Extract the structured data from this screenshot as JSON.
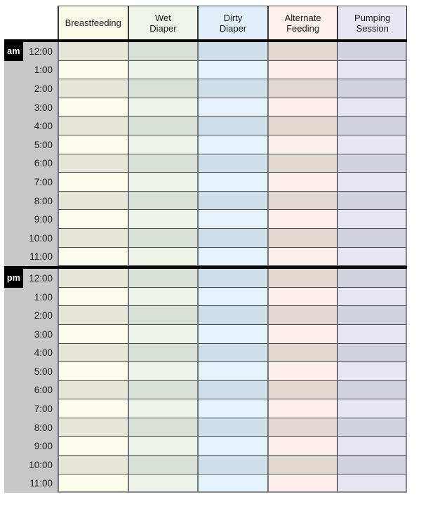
{
  "table": {
    "columns": [
      {
        "label": "Breastfeeding",
        "header_bg": "#fbfbe9",
        "row_light": "#fdfdee",
        "row_dark": "#e5e5d8"
      },
      {
        "label": "Wet\nDiaper",
        "header_bg": "#eff4ea",
        "row_light": "#eef3ea",
        "row_dark": "#d8dfd4"
      },
      {
        "label": "Dirty\nDiaper",
        "header_bg": "#e0effa",
        "row_light": "#e4f2fc",
        "row_dark": "#cfdfe9"
      },
      {
        "label": "Alternate\nFeeding",
        "header_bg": "#fdefeb",
        "row_light": "#fcefeb",
        "row_dark": "#e1d8d2"
      },
      {
        "label": "Pumping\nSession",
        "header_bg": "#e7e6f2",
        "row_light": "#e8e6f2",
        "row_dark": "#d2d2df"
      }
    ],
    "sections": [
      {
        "meridiem": "am",
        "times": [
          "12:00",
          "1:00",
          "2:00",
          "3:00",
          "4:00",
          "5:00",
          "6:00",
          "7:00",
          "8:00",
          "9:00",
          "10:00",
          "11:00"
        ]
      },
      {
        "meridiem": "pm",
        "times": [
          "12:00",
          "1:00",
          "2:00",
          "3:00",
          "4:00",
          "5:00",
          "6:00",
          "7:00",
          "8:00",
          "9:00",
          "10:00",
          "11:00"
        ]
      }
    ],
    "colors": {
      "time_column_bg": "#c7c7c7",
      "meridiem_badge_bg": "#000000",
      "meridiem_badge_text": "#ffffff",
      "grid_horizontal": "#4a4a4a",
      "grid_vertical": "#71767e",
      "thick_divider": "#050505",
      "outer_edge": "#8a8a93",
      "header_border": "#3a3a3a",
      "text": "#1a1a1a"
    }
  }
}
